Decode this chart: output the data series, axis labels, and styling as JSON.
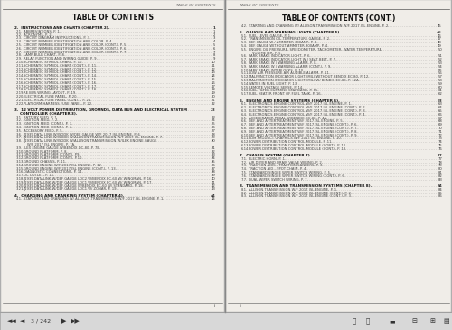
{
  "bg_color": "#b0b0b0",
  "page_bg": "#f0ede8",
  "left_page": {
    "header": "TABLE OF CONTENTS",
    "title": "TABLE OF CONTENTS",
    "sections": [
      {
        "num": "2.",
        "bold": true,
        "text": "INSTRUCTIONS AND CHARTS (CHAPTER 2).",
        "page": "1",
        "items": [
          {
            "num": "2.1.",
            "text": "ABBREVIATIONS, P. 1.",
            "page": "1"
          },
          {
            "num": "2.2.",
            "text": "ACRONYMS, P. 2.",
            "page": "2"
          },
          {
            "num": "2.3.",
            "text": "CIRCUIT DIAGRAM INSTRUCTIONS, P. 3.",
            "page": "3"
          },
          {
            "num": "2.4.",
            "text": "CIRCUIT NUMBER IDENTIFICATION AND COLOR, P. 4.",
            "page": "4"
          },
          {
            "num": "2.5.",
            "text": "CIRCUIT NUMBER IDENTIFICATION AND COLOR (CONT.), P. 5.",
            "page": "5"
          },
          {
            "num": "2.6.",
            "text": "CIRCUIT NUMBER IDENTIFICATION AND COLOR (CONT.), P. 6.",
            "page": "6"
          },
          {
            "num": "2.7.",
            "text": "CIRCUIT NUMBER IDENTIFICATION AND COLOR (CONT.), P. 7.",
            "page": "7"
          },
          {
            "num": "2.8.",
            "text": "LAMP BULB CHART, P. 8.",
            "page": "8"
          },
          {
            "num": "2.9.",
            "text": "RELAY FUNCTION AND WIRING GUIDE, P. 9.",
            "page": "9"
          },
          {
            "num": "2.10.",
            "text": "SCHEMATIC SYMBOL CHART, P. 10.",
            "page": "10"
          },
          {
            "num": "2.11.",
            "text": "SCHEMATIC SYMBOL CHART (CONT.), P. 11.",
            "page": "11"
          },
          {
            "num": "2.12.",
            "text": "SCHEMATIC SYMBOL CHART (CONT.), P. 12.",
            "page": "12"
          },
          {
            "num": "2.13.",
            "text": "SCHEMATIC SYMBOL CHART (CONT.), P. 13.",
            "page": "13"
          },
          {
            "num": "2.14.",
            "text": "SCHEMATIC SYMBOL CHART (CONT.), P. 14.",
            "page": "14"
          },
          {
            "num": "2.15.",
            "text": "SCHEMATIC SYMBOL CHART (CONT.), P. 15.",
            "page": "15"
          },
          {
            "num": "2.16.",
            "text": "SCHEMATIC SYMBOL CHART (CONT.), P. 16.",
            "page": "16"
          },
          {
            "num": "2.17.",
            "text": "SCHEMATIC SYMBOL CHART (CONT.), P. 17.",
            "page": "17"
          },
          {
            "num": "2.18.",
            "text": "SCHEMATIC SYMBOL CHART (CONT.), P. 18.",
            "page": "18"
          },
          {
            "num": "2.19.",
            "text": "RE BUS WIRING LAYOUT, P. 19.",
            "page": "19"
          },
          {
            "num": "2.20.",
            "text": "ELECTRICAL FUSE PANEL, P. 20.",
            "page": "20"
          },
          {
            "num": "2.21.",
            "text": "ELECTRICAL FUSE PANEL (CONT.), P. 21.",
            "page": "21"
          },
          {
            "num": "2.22.",
            "text": "PLATFORM HARNESS FUSE PANEL, P. 22.",
            "page": "22"
          }
        ]
      },
      {
        "num": "3.",
        "bold": true,
        "text": "12 VOLT POWER DISTRIBUTION, GROUNDS, DATA BUS AND ELECTRICAL SYSTEM",
        "text2": "CONTROLLER (CHAPTER 3).",
        "page": "23",
        "items": [
          {
            "num": "3.1.",
            "text": "BATTERY FEED, P. 1.",
            "page": "23"
          },
          {
            "num": "3.2.",
            "text": "IGNITION FEED, P. 2.",
            "page": "24"
          },
          {
            "num": "3.3.",
            "text": "IGNITION FEED (CONT.), P. 3.",
            "page": "25"
          },
          {
            "num": "3.4.",
            "text": "IGNITION FEED (CONT.), P. 4.",
            "page": "26"
          },
          {
            "num": "3.5.",
            "text": "ACCESSORY FEED, P. 5.",
            "page": "27"
          },
          {
            "num": "3.6.",
            "text": "J1939 DATA LINK W/ISODK W/DEF GAUGE W/F 2017 ISL ENGINE, P. 6.",
            "page": "28"
          },
          {
            "num": "3.7.",
            "text": "J1939 DATA LINK W/ISODK W/ALLISON TRANSMISSION W/F 2017 ISL ENGINE, P. 7.",
            "page": "29"
          },
          {
            "num": "3.8.",
            "text": "J1939 DATA LINK W/ISODK W/ALLISON TRANSMISSION W/ILEX ENGINE GAUGE",
            "text2": "W/F 2017 ISL ENGINE, P. 7A.",
            "page": "30"
          },
          {
            "num": "3.9.",
            "text": "ILEX ENGINE GAUGE W/BENDIX DC-80, P. 7B.",
            "page": "31"
          },
          {
            "num": "3.10.",
            "text": "GROUND PLATFORM, P. 8.",
            "page": "32"
          },
          {
            "num": "3.11.",
            "text": "GROUND PLATFORM (CONT.), P9.",
            "page": "33"
          },
          {
            "num": "3.12.",
            "text": "GROUND PLATFORM (CONT.), P.10.",
            "page": "34"
          },
          {
            "num": "3.13.",
            "text": "GROUND CHASSIS, P. 11.",
            "page": "35"
          },
          {
            "num": "3.14.",
            "text": "GROUND ENGINE W/F 2017 ISL ENGINE, P. 12.",
            "page": "36"
          },
          {
            "num": "3.15.",
            "text": "GROUND ENGINE W/F 2017 ISL ENGINE (CONT.), P. 13.",
            "page": "37"
          },
          {
            "num": "3.16.",
            "text": "DIAGNOSTIC CONNECTIONS, P. 14.",
            "page": "38"
          },
          {
            "num": "3.17.",
            "text": "DC OUTLET, P. 15.",
            "page": "39"
          },
          {
            "num": "3.18.",
            "text": "J1939 DATALINK W/DEF GAUGE LOC2 W/BENDIX EC-60 W/ WINGMAN, P. 16.",
            "page": "40"
          },
          {
            "num": "3.19.",
            "text": "J1939 DATALINK W/DEF GAUGE LOC1 W/BENDIX EC-60 W/ WINGMAN, P. 17.",
            "page": "41"
          },
          {
            "num": "3.20.",
            "text": "J1939 DATALINK W/DEF GAUGE W/BENDIX EC-60 W/ STANDARD, P. 18.",
            "page": "42"
          },
          {
            "num": "3.21.",
            "text": "J1939 DATALINK W/DEF GAUGE LOC1 W/ ZONAR, P. 19.",
            "page": "43"
          }
        ]
      },
      {
        "num": "4.",
        "bold": true,
        "text": "CHARGING AND CRANKING SYSTEM (CHAPTER 4).",
        "text2": "",
        "page": "44",
        "items": [
          {
            "num": "4.1.",
            "text": "STARTING AND CRANKING W/ ALLISON TRANSMISSION W/F 2017 ISL ENGINE, P. 1.",
            "page": "44"
          }
        ]
      }
    ],
    "footer": "i"
  },
  "right_page": {
    "header": "TABLE OF CONTENTS",
    "title": "TABLE OF CONTENTS (CONT.)",
    "pre_items": [
      {
        "num": "4.2.",
        "text": "STARTING AND CRANKING W/ ALLISON TRANSMISSION W/F 2017 ISL ENGINE, P. 2.",
        "page": "45"
      }
    ],
    "sections": [
      {
        "num": "5.",
        "bold": true,
        "text": "GAUGES AND WARNING LIGHTS (CHAPTER 5).",
        "text2": "",
        "page": "46",
        "items": [
          {
            "num": "5.1.",
            "text": "FUEL LEVEL GAUGE, P. 1.",
            "page": "46"
          },
          {
            "num": "5.2.",
            "text": "TRANSMISSION OIL TEMPERATURE GAUGE, P. 2.",
            "page": "47"
          },
          {
            "num": "5.3.",
            "text": "DEF GAUGE W / AMMETER 300AMP, P. 3.",
            "page": "48"
          },
          {
            "num": "5.4.",
            "text": "DEF GAUGE WITHOUT AMMETER 300AMP, P. 4.",
            "page": "49"
          },
          {
            "num": "5.5.",
            "text": "ENGINE OIL PRESSURE, SPEEDOMETER, TACHOMETER, WATER TEMPERATURE,",
            "text2": "VOLTMETER, P. 5.",
            "page": "50"
          },
          {
            "num": "5.6.",
            "text": "PARK BRAKE INDICATOR LIGHT, P. 6.",
            "page": "51"
          },
          {
            "num": "5.7.",
            "text": "PARK BRAKE INDICATOR LIGHT W / SEAT BELT, P. 7.",
            "page": "52"
          },
          {
            "num": "5.8.",
            "text": "PARK BRAKE W / WARNING ALARM, P. 8.",
            "page": "53"
          },
          {
            "num": "5.9.",
            "text": "PARK BRAKE W / WARNING ALARM (CONT.), P. 9.",
            "page": "54"
          },
          {
            "num": "5.10.",
            "text": "PARK BRAKE INTERLOCKS, P. 10.",
            "page": "55"
          },
          {
            "num": "5.11.",
            "text": "LOW AIR PRESSURE AIR AUDIBLE ALARM, P. 11.",
            "page": "56"
          },
          {
            "num": "5.12.",
            "text": "MALFUNCTION INDICATOR LIGHT (MIL) WITHOUT BENDIX EC-80, P. 12.",
            "page": "57"
          },
          {
            "num": "5.13.",
            "text": "MALFUNCTION INDICATOR LIGHT (MIL) W/ BENDIX EC-80, P. 12A.",
            "page": "58"
          },
          {
            "num": "5.14.",
            "text": "WATER IN FUEL LIGHT, P. 13.",
            "page": "59"
          },
          {
            "num": "5.15.",
            "text": "REMOTE VOLTAGE SENSE, P. 14.",
            "page": "60"
          },
          {
            "num": "5.16.",
            "text": "FUEL FILTER CUMMING STANDARD, P. 15.",
            "page": "61"
          },
          {
            "num": "5.17.",
            "text": "FUEL HEATER FRONT OF FUEL TANK, P. 16.",
            "page": "62"
          }
        ]
      },
      {
        "num": "6.",
        "bold": true,
        "text": "ENGINE AND ENGINE SYSTEMS (CHAPTER 6).",
        "text2": "",
        "page": "63",
        "items": [
          {
            "num": "6.1.",
            "text": "ELECTRONICS ENGINE CONTROL W/F 2017 ISL ENGINE, P. 1.",
            "page": "63"
          },
          {
            "num": "6.2.",
            "text": "ELECTRONICS ENGINE CONTROL W/F 2017 ISL ENGINE (CONT.), P. 2.",
            "page": "64"
          },
          {
            "num": "6.3.",
            "text": "ELECTRONICS ENGINE CONTROL W/F 2017 ISL ENGINE (CONT.), P. 3.",
            "page": "65"
          },
          {
            "num": "6.4.",
            "text": "ELECTRONICS ENGINE CONTROL W/F 2017 ISL ENGINE (CONT.), P. 4.",
            "page": "66"
          },
          {
            "num": "6.5.",
            "text": "ACCELERATOR PEDAL W/BENDIX DC-80, P. 4A.",
            "page": "67"
          },
          {
            "num": "6.6.",
            "text": "DEF AND AFTERTREATMENT W/F 2017 ISL ENGINE, P. 5.",
            "page": "68"
          },
          {
            "num": "6.7.",
            "text": "DEF AND AFTERTREATMENT W/F 2017 ISL ENGINE (CONT.), P. 6.",
            "page": "69"
          },
          {
            "num": "6.8.",
            "text": "DEF AND AFTERTREATMENT W/F 2017 ISL ENGINE (CONT.), P. 7.",
            "page": "70"
          },
          {
            "num": "6.9.",
            "text": "DEF AND AFTERTREATMENT W/F 2017 ISL ENGINE (CONT.), P. 8.",
            "page": "71"
          },
          {
            "num": "6.10.",
            "text": "DEF AND AFTERTREATMENT W/F 2017 ISL ENGINE (CONT.), P. 9.",
            "page": "72"
          },
          {
            "num": "6.11.",
            "text": "PDM PRODUCT GRAPHICS W/F 2017 ISL ENGINE, P. 10.",
            "page": "73"
          },
          {
            "num": "6.12.",
            "text": "POWER DISTRIBUTION CONTROL MODULE, P. 11.",
            "page": "74"
          },
          {
            "num": "6.13.",
            "text": "POWER DISTRIBUTION CONTROL MODULE (CONT.), P. 12.",
            "page": "75"
          },
          {
            "num": "6.14.",
            "text": "POWER DISTRIBUTION CONTROL MODULE (CONT.), P. 13.",
            "page": "76"
          }
        ]
      },
      {
        "num": "7.",
        "bold": true,
        "text": "CHASSIS SYSTEM (CHAPTER 7).",
        "text2": "",
        "page": "77",
        "items": [
          {
            "num": "7.1.",
            "text": "ELECTRIC HORN, P. 1.",
            "page": "77"
          },
          {
            "num": "7.2.",
            "text": "AIR DRYER AND DRAIN VALVE WIRING, P. 2.",
            "page": "78"
          },
          {
            "num": "7.3.",
            "text": "TRACTION AIDS - TRACTION SANDERS, P. 3.",
            "page": "79"
          },
          {
            "num": "7.4.",
            "text": "TRACTION AID - SPOT CHAIN, P. 4.",
            "page": "80"
          },
          {
            "num": "7.5.",
            "text": "STANDARD SINGLE WIPER SWITCH WIRING, P. 5.",
            "page": "81"
          },
          {
            "num": "7.6.",
            "text": "STANDARD SINGLE WIPER SWITCH WIRING (CONT.), P. 6.",
            "page": "82"
          },
          {
            "num": "7.7.",
            "text": "DUAL WIPER SWITCH WIRING, P. 7.",
            "page": "83"
          }
        ]
      },
      {
        "num": "8.",
        "bold": true,
        "text": "TRANSMISSION AND TRANSMISSION SYSTEMS (CHAPTER 8).",
        "text2": "",
        "page": "84",
        "items": [
          {
            "num": "8.1.",
            "text": "ALLISON TRANSMISSION W/F 2017 ISL ENGINE, P. 1.",
            "page": "84"
          },
          {
            "num": "8.2.",
            "text": "ALLISON TRANSMISSION W/F 2017 ISL ENGINE (CONT.), P. 2.",
            "page": "85"
          },
          {
            "num": "8.3.",
            "text": "ALLISON TRANSMISSION W/F 2017 ISL ENGINE (CONT.), P. 3.",
            "page": "86"
          }
        ]
      }
    ],
    "footer": "ii"
  }
}
